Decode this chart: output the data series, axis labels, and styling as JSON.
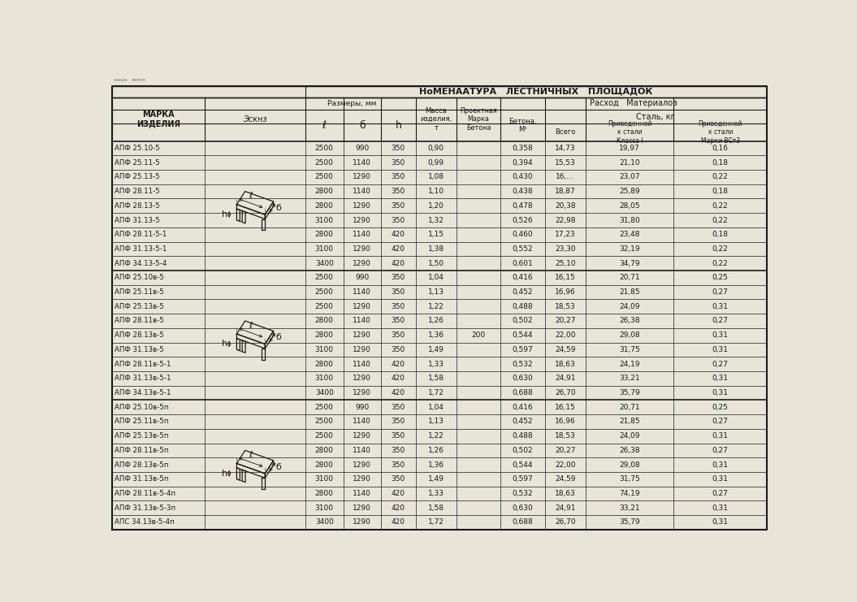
{
  "title_top": "НоМЕНААТУРА   ЛЕСТНИЧНЫХ   ПЛОЩАДОК",
  "col_label_marka": "МАРКА\nИЗДЕЛИЯ",
  "col_label_eskiz": "ЭСКНЗ",
  "col_label_razmery": "Размеры, ММ",
  "col_label_massa": "МАССА\nИЗДЕЛИЯ,\nТ",
  "col_label_proektnaya": "Проектная\nМарка\nБетона",
  "col_label_rashod": "Расход   МАТЕРИАЛОВ",
  "col_label_betona": "Бетона,\nМ³",
  "col_label_stal": "СТАЛИ, КГ",
  "col_label_vsego": "Всего",
  "col_label_klass1": "Приведенной\nк стали\nКласса I",
  "col_label_vst3": "Приведенной\nк стали\nМарки ВСт3",
  "rows": [
    [
      "АПФ 25.10-5",
      "2500",
      "990",
      "350",
      "0,90",
      "",
      "0,358",
      "14,73",
      "19,97",
      "0,16"
    ],
    [
      "АПФ 25.11-5",
      "2500",
      "1140",
      "350",
      "0,99",
      "",
      "0,394",
      "15,53",
      "21,10",
      "0,18"
    ],
    [
      "АПФ 25.13-5",
      "2500",
      "1290",
      "350",
      "1,08",
      "",
      "0,430",
      "16,...",
      "23,07",
      "0,22"
    ],
    [
      "АПФ 28.11-5",
      "2800",
      "1140",
      "350",
      "1,10",
      "",
      "0,438",
      "18,87",
      "25,89",
      "0,18"
    ],
    [
      "АПФ 28.13-5",
      "2800",
      "1290",
      "350",
      "1,20",
      "",
      "0,478",
      "20,38",
      "28,05",
      "0,22"
    ],
    [
      "АПФ 31.13-5",
      "3100",
      "1290",
      "350",
      "1,32",
      "",
      "0,526",
      "22,98",
      "31,80",
      "0,22"
    ],
    [
      "АПФ 28.11-5-1",
      "2800",
      "1140",
      "420",
      "1,15",
      "",
      "0,460",
      "17,23",
      "23,48",
      "0,18"
    ],
    [
      "АПФ 31.13-5-1",
      "3100",
      "1290",
      "420",
      "1,38",
      "",
      "0,552",
      "23,30",
      "32,19",
      "0,22"
    ],
    [
      "АПФ 34.13-5-4",
      "3400",
      "1290",
      "420",
      "1,50",
      "",
      "0,601",
      "25,10",
      "34,79",
      "0,22"
    ],
    [
      "АПФ 25.10в-5",
      "2500",
      "990",
      "350",
      "1,04",
      "",
      "0,416",
      "16,15",
      "20,71",
      "0,25"
    ],
    [
      "АПФ 25.11в-5",
      "2500",
      "1140",
      "350",
      "1,13",
      "",
      "0,452",
      "16,96",
      "21,85",
      "0,27"
    ],
    [
      "АПФ 25.13в-5",
      "2500",
      "1290",
      "350",
      "1,22",
      "",
      "0,488",
      "18,53",
      "24,09",
      "0,31"
    ],
    [
      "АПФ 28.11в-5",
      "2800",
      "1140",
      "350",
      "1,26",
      "",
      "0,502",
      "20,27",
      "26,38",
      "0,27"
    ],
    [
      "АПФ 28.13в-5",
      "2800",
      "1290",
      "350",
      "1,36",
      "200",
      "0,544",
      "22,00",
      "29,08",
      "0,31"
    ],
    [
      "АПФ 31.13в-5",
      "3100",
      "1290",
      "350",
      "1,49",
      "",
      "0,597",
      "24,59",
      "31,75",
      "0,31"
    ],
    [
      "АПФ 28.11в-5-1",
      "2800",
      "1140",
      "420",
      "1,33",
      "",
      "0,532",
      "18,63",
      "24,19",
      "0,27"
    ],
    [
      "АПФ 31.13в-5-1",
      "3100",
      "1290",
      "420",
      "1,58",
      "",
      "0,630",
      "24,91",
      "33,21",
      "0,31"
    ],
    [
      "АПФ 34.13в-5-1",
      "3400",
      "1290",
      "420",
      "1,72",
      "",
      "0,688",
      "26,70",
      "35,79",
      "0,31"
    ],
    [
      "АПФ 25.10в-5п",
      "2500",
      "990",
      "350",
      "1,04",
      "",
      "0,416",
      "16,15",
      "20,71",
      "0,25"
    ],
    [
      "АПФ 25.11в-5п",
      "2500",
      "1140",
      "350",
      "1,13",
      "",
      "0,452",
      "16,96",
      "21,85",
      "0,27"
    ],
    [
      "АПФ 25.13в-5п",
      "2500",
      "1290",
      "350",
      "1,22",
      "",
      "0,488",
      "18,53",
      "24,09",
      "0,31"
    ],
    [
      "АПФ 28.11в-5п",
      "2800",
      "1140",
      "350",
      "1,26",
      "",
      "0,502",
      "20,27",
      "26,38",
      "0,27"
    ],
    [
      "АПФ 28.13в-5п",
      "2800",
      "1290",
      "350",
      "1,36",
      "",
      "0,544",
      "22,00",
      "29,08",
      "0,31"
    ],
    [
      "АПФ 31.13в-5п",
      "3100",
      "1290",
      "350",
      "1,49",
      "",
      "0,597",
      "24,59",
      "31,75",
      "0,31"
    ],
    [
      "АПФ 28.11в-5-4п",
      "2800",
      "1140",
      "420",
      "1,33",
      "",
      "0,532",
      "18,63",
      "74,19",
      "0,27"
    ],
    [
      "АПФ 31.13в-5-3п",
      "3100",
      "1290",
      "420",
      "1,58",
      "",
      "0,630",
      "24,91",
      "33,21",
      "0,31"
    ],
    [
      "АПС 34.13в-5-4п",
      "3400",
      "1290",
      "420",
      "1,72",
      "",
      "0,688",
      "26,70",
      "35,79",
      "0,31"
    ]
  ],
  "bg_color": "#e8e4d8",
  "line_color": "#1a1a1a",
  "text_color": "#1a1a1a",
  "group_sizes": [
    9,
    9,
    9
  ]
}
